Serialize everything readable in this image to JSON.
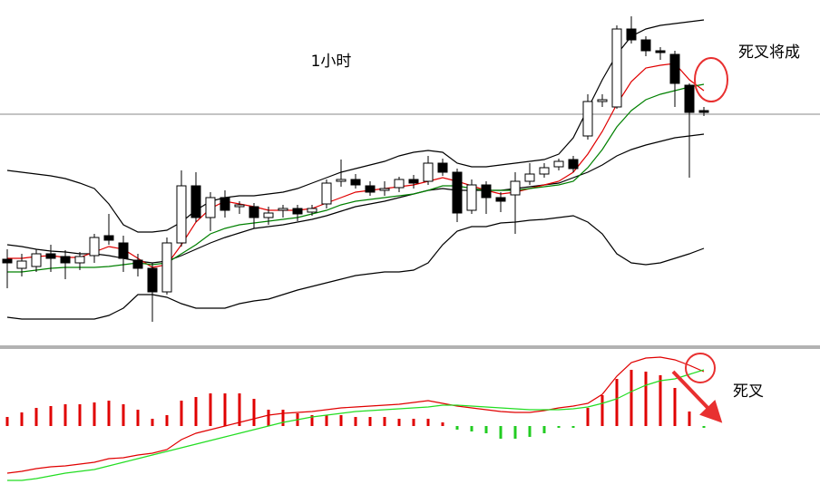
{
  "chart_data": [
    {
      "type": "candlestick",
      "title": "1小时",
      "annotation": "死叉将成",
      "open": [
        114,
        104,
        106,
        120,
        117,
        110,
        118,
        140,
        132,
        113,
        104,
        78,
        132,
        195,
        160,
        182,
        172,
        172,
        160,
        168,
        170,
        166,
        175,
        200,
        202,
        195,
        190,
        193,
        202,
        200,
        220,
        210,
        168,
        196,
        182,
        185,
        200,
        208,
        216,
        224,
        250,
        288,
        282,
        368,
        356,
        344,
        340,
        306,
        278
      ],
      "close": [
        110,
        112,
        120,
        115,
        110,
        117,
        138,
        135,
        115,
        104,
        78,
        132,
        195,
        160,
        182,
        168,
        174,
        160,
        165,
        170,
        164,
        170,
        198,
        202,
        196,
        188,
        192,
        202,
        198,
        220,
        210,
        165,
        196,
        182,
        178,
        200,
        208,
        215,
        222,
        214,
        288,
        290,
        368,
        356,
        344,
        342,
        308,
        276,
        276
      ],
      "high": [
        125,
        120,
        125,
        130,
        124,
        122,
        142,
        164,
        140,
        120,
        110,
        138,
        212,
        210,
        188,
        190,
        178,
        176,
        172,
        174,
        174,
        174,
        202,
        224,
        208,
        200,
        200,
        205,
        207,
        228,
        225,
        214,
        202,
        200,
        188,
        210,
        220,
        220,
        225,
        228,
        296,
        296,
        372,
        382,
        360,
        348,
        344,
        308,
        282
      ],
      "low": [
        82,
        95,
        100,
        100,
        92,
        102,
        110,
        130,
        100,
        95,
        45,
        75,
        128,
        155,
        145,
        160,
        164,
        148,
        152,
        160,
        156,
        162,
        170,
        194,
        192,
        184,
        184,
        188,
        192,
        196,
        206,
        155,
        164,
        164,
        166,
        142,
        196,
        204,
        212,
        210,
        246,
        282,
        280,
        352,
        338,
        334,
        282,
        204,
        272
      ],
      "up_color": "#ffffff",
      "down_color": "#000000",
      "series": [
        {
          "color": "#000000",
          "values": [
            212,
            210,
            208,
            206,
            203,
            198,
            192,
            175,
            152,
            144,
            144,
            146,
            155,
            168,
            178,
            182,
            184,
            184,
            186,
            188,
            192,
            198,
            204,
            210,
            214,
            218,
            222,
            228,
            232,
            234,
            232,
            220,
            216,
            216,
            218,
            220,
            222,
            224,
            230,
            248,
            280,
            312,
            340,
            360,
            368,
            372,
            374,
            376,
            378
          ]
        },
        {
          "color": "#000000",
          "values": [
            130,
            128,
            125,
            123,
            122,
            120,
            120,
            118,
            115,
            112,
            110,
            112,
            118,
            125,
            132,
            138,
            143,
            148,
            150,
            152,
            155,
            158,
            162,
            167,
            172,
            175,
            178,
            182,
            186,
            190,
            192,
            190,
            190,
            190,
            190,
            192,
            194,
            196,
            198,
            204,
            210,
            218,
            228,
            235,
            240,
            244,
            248,
            250,
            252
          ]
        },
        {
          "color": "#000000",
          "values": [
            50,
            48,
            48,
            48,
            48,
            48,
            48,
            52,
            60,
            75,
            75,
            72,
            65,
            60,
            60,
            60,
            65,
            68,
            70,
            75,
            80,
            84,
            88,
            92,
            96,
            98,
            100,
            100,
            102,
            110,
            130,
            145,
            150,
            150,
            154,
            155,
            157,
            158,
            160,
            162,
            155,
            142,
            120,
            110,
            108,
            110,
            115,
            120,
            126
          ]
        },
        {
          "color": "#e00000",
          "values": [
            115,
            115,
            117,
            118,
            116,
            116,
            122,
            128,
            125,
            115,
            105,
            108,
            130,
            155,
            170,
            178,
            175,
            172,
            168,
            168,
            168,
            170,
            176,
            182,
            188,
            190,
            192,
            194,
            196,
            200,
            204,
            200,
            195,
            190,
            186,
            188,
            192,
            196,
            200,
            210,
            230,
            255,
            285,
            310,
            325,
            328,
            330,
            312,
            300
          ]
        },
        {
          "color": "#008000",
          "values": [
            100,
            100,
            102,
            104,
            105,
            105,
            105,
            106,
            108,
            110,
            108,
            110,
            120,
            130,
            142,
            148,
            152,
            154,
            156,
            158,
            160,
            164,
            168,
            174,
            178,
            180,
            182,
            184,
            186,
            190,
            195,
            195,
            192,
            190,
            190,
            190,
            192,
            194,
            196,
            200,
            215,
            235,
            260,
            278,
            290,
            296,
            300,
            304,
            307
          ]
        }
      ],
      "hline": 274,
      "ylim": [
        20,
        400
      ]
    },
    {
      "type": "macd",
      "annotation": "死叉",
      "values": [
        10,
        15,
        20,
        22,
        24,
        24,
        26,
        28,
        24,
        18,
        8,
        12,
        28,
        32,
        36,
        36,
        36,
        30,
        18,
        18,
        14,
        12,
        12,
        12,
        10,
        10,
        10,
        8,
        8,
        8,
        4,
        -4,
        -6,
        -8,
        -14,
        -14,
        -12,
        -8,
        -2,
        -2,
        20,
        34,
        52,
        62,
        60,
        56,
        42,
        16,
        -2
      ],
      "up_color": "#e00000",
      "down_color": "#22cc22",
      "series": [
        {
          "color": "#e00000",
          "values": [
            -52,
            -50,
            -47,
            -45,
            -44,
            -42,
            -40,
            -36,
            -35,
            -32,
            -30,
            -26,
            -15,
            -8,
            -4,
            0,
            4,
            8,
            12,
            14,
            15,
            16,
            18,
            20,
            21,
            22,
            23,
            24,
            26,
            28,
            25,
            22,
            20,
            18,
            16,
            15,
            15,
            17,
            20,
            22,
            25,
            35,
            55,
            70,
            75,
            76,
            73,
            67,
            60
          ]
        },
        {
          "color": "#22dd22",
          "values": [
            -60,
            -60,
            -58,
            -55,
            -52,
            -50,
            -48,
            -44,
            -40,
            -36,
            -32,
            -28,
            -24,
            -20,
            -16,
            -12,
            -8,
            -4,
            0,
            4,
            7,
            10,
            12,
            14,
            16,
            17,
            18,
            19,
            20,
            21,
            23,
            23,
            22,
            21,
            20,
            19,
            18,
            18,
            18,
            19,
            21,
            25,
            30,
            38,
            45,
            50,
            52,
            57,
            62
          ]
        }
      ],
      "ylim": [
        -75,
        85
      ]
    }
  ]
}
